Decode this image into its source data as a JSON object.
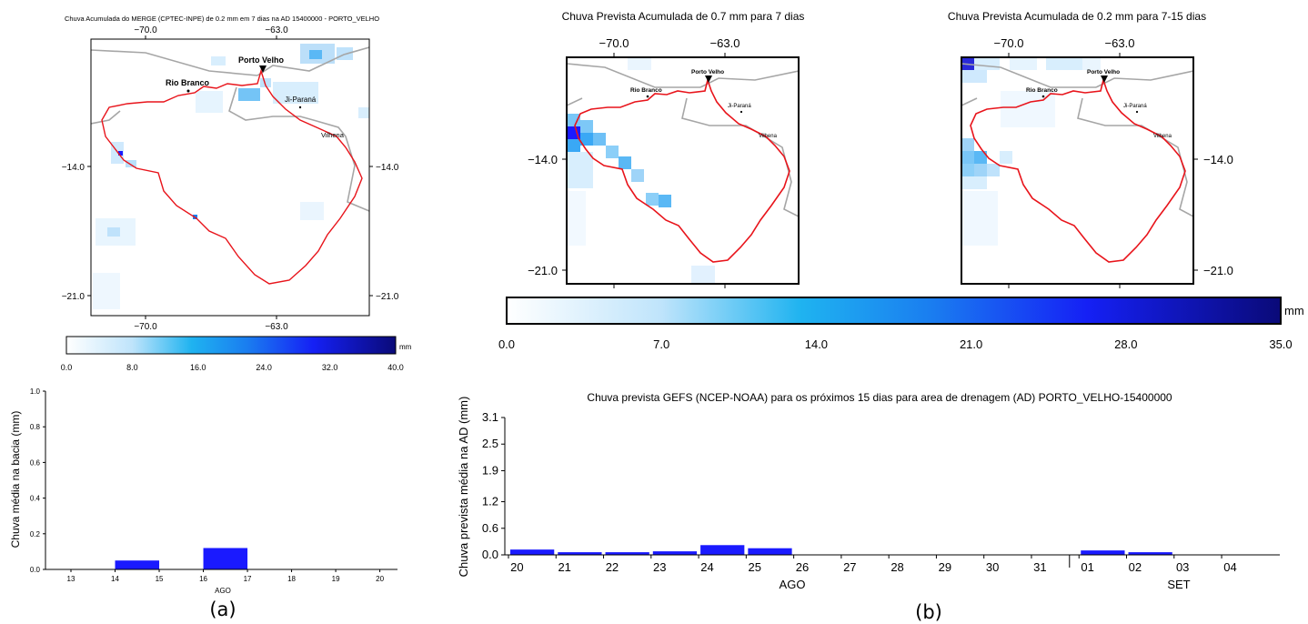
{
  "panels": {
    "a_label": "(a)",
    "b_label": "(b)"
  },
  "map_a": {
    "title": "Chuva Acumulada do MERGE (CPTEC-INPE) de 0.2 mm em 7 dias na AD 15400000 - PORTO_VELHO",
    "x_ticks": [
      "−70.0",
      "−63.0"
    ],
    "y_ticks": [
      "−14.0",
      "−21.0"
    ],
    "cities": [
      "Porto Velho",
      "Rio Branco",
      "Ji-Paraná",
      "Vilhena"
    ]
  },
  "colorbar_a": {
    "ticks": [
      "0.0",
      "8.0",
      "16.0",
      "24.0",
      "32.0",
      "40.0"
    ],
    "unit": "mm"
  },
  "map_b1": {
    "title": "Chuva Prevista Acumulada de 0.7 mm para 7 dias",
    "x_ticks": [
      "−70.0",
      "−63.0"
    ],
    "y_ticks": [
      "−14.0",
      "−21.0"
    ],
    "cities": [
      "Porto Velho",
      "Rio Branco",
      "Ji-Paraná",
      "Vilhena"
    ]
  },
  "map_b2": {
    "title": "Chuva Prevista Acumulada de 0.2 mm para 7-15 dias",
    "x_ticks": [
      "−70.0",
      "−63.0"
    ],
    "y_ticks": [
      "−14.0",
      "−21.0"
    ],
    "cities": [
      "Porto Velho",
      "Rio Branco",
      "Ji-Paraná",
      "Vilhena"
    ]
  },
  "colorbar_b": {
    "ticks": [
      "0.0",
      "7.0",
      "14.0",
      "21.0",
      "28.0",
      "35.0"
    ],
    "unit": "mm"
  },
  "colors": {
    "basin_outline": "#e8141b",
    "border_gray": "#a6a6a6",
    "bar_blue": "#1a1aff",
    "rain_light": "#d6ecff",
    "rain_mid": "#5ab8f5",
    "rain_dark": "#0a0aa8"
  },
  "chart_data": [
    {
      "type": "bar",
      "ylabel": "Chuva média na bacia (mm)",
      "xlabel": "AGO",
      "ylim": [
        0,
        1.0
      ],
      "y_ticks": [
        "0.0",
        "0.2",
        "0.4",
        "0.6",
        "0.8",
        "1.0"
      ],
      "x_ticks": [
        "13",
        "14",
        "15",
        "16",
        "17",
        "18",
        "19",
        "20"
      ],
      "bars": [
        {
          "from": 14,
          "to": 15,
          "value": 0.05
        },
        {
          "from": 16,
          "to": 17,
          "value": 0.12
        }
      ]
    },
    {
      "type": "bar",
      "title": "Chuva prevista GEFS (NCEP-NOAA) para os próximos 15 dias para area de drenagem (AD) PORTO_VELHO-15400000",
      "ylabel": "Chuva prevista média na AD (mm)",
      "ylim": [
        0,
        3.1
      ],
      "y_ticks": [
        "0.0",
        "0.6",
        "1.2",
        "1.9",
        "2.5",
        "3.1"
      ],
      "x_ticks": [
        "20",
        "21",
        "22",
        "23",
        "24",
        "25",
        "26",
        "27",
        "28",
        "29",
        "30",
        "31",
        "01",
        "02",
        "03",
        "04"
      ],
      "month_labels": [
        "AGO",
        "SET"
      ],
      "categories": [
        "20",
        "21",
        "22",
        "23",
        "24",
        "25",
        "26",
        "27",
        "28",
        "29",
        "30",
        "31",
        "01",
        "02",
        "03",
        "04"
      ],
      "values": [
        0.12,
        0.06,
        0.06,
        0.08,
        0.22,
        0.15,
        0,
        0,
        0,
        0,
        0,
        0,
        0.1,
        0.06,
        0,
        0
      ]
    }
  ]
}
